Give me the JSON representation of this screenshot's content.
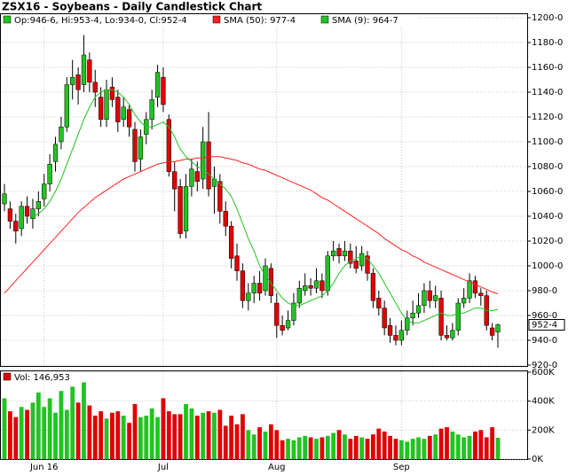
{
  "chart_data": {
    "type": "candlestick",
    "title": "ZSX16 - Soybeans - Daily Candlestick Chart",
    "ohlc_label": "Op:946-6, Hi:953-4, Lo:934-0, Cl:952-4",
    "close_label": "952-4",
    "up_color": "#22c322",
    "down_color": "#e00000",
    "categories": [
      null,
      null,
      null,
      null,
      null,
      null,
      null,
      "Jun 16",
      null,
      null,
      null,
      null,
      null,
      null,
      null,
      null,
      null,
      null,
      null,
      null,
      null,
      null,
      null,
      null,
      null,
      null,
      null,
      null,
      "Jul",
      null,
      null,
      null,
      null,
      null,
      null,
      null,
      null,
      null,
      null,
      null,
      null,
      null,
      null,
      null,
      null,
      null,
      null,
      null,
      "Aug",
      null,
      null,
      null,
      null,
      null,
      null,
      null,
      null,
      null,
      null,
      null,
      null,
      null,
      null,
      null,
      null,
      null,
      null,
      null,
      null,
      null,
      "Sep",
      null,
      null,
      null,
      null,
      null,
      null,
      null,
      null,
      null,
      null,
      null,
      null,
      null,
      null,
      null,
      null,
      null
    ],
    "open": [
      1050,
      1046,
      1036,
      1030,
      1048,
      1038,
      1046,
      1054,
      1066,
      1084,
      1100,
      1112,
      1146,
      1154,
      1146,
      1166,
      1148,
      1136,
      1118,
      1144,
      1136,
      1118,
      1126,
      1110,
      1086,
      1106,
      1118,
      1136,
      1152,
      1118,
      1076,
      1064,
      1028,
      1064,
      1076,
      1070,
      1100,
      1064,
      1068,
      1044,
      1032,
      1008,
      996,
      972,
      978,
      986,
      980,
      998,
      970,
      952,
      950,
      956,
      970,
      980,
      984,
      982,
      988,
      980,
      1008,
      1014,
      1008,
      1012,
      1004,
      1000,
      1008,
      994,
      974,
      966,
      952,
      944,
      940,
      948,
      958,
      962,
      968,
      980,
      972,
      974,
      944,
      942,
      948,
      970,
      974,
      988,
      978,
      976,
      950,
      946.75
    ],
    "high": [
      1066,
      1052,
      1042,
      1052,
      1056,
      1054,
      1060,
      1074,
      1090,
      1104,
      1120,
      1152,
      1166,
      1160,
      1186,
      1172,
      1158,
      1144,
      1150,
      1152,
      1142,
      1136,
      1130,
      1116,
      1110,
      1124,
      1142,
      1162,
      1160,
      1122,
      1084,
      1070,
      1074,
      1086,
      1084,
      1112,
      1124,
      1080,
      1074,
      1052,
      1036,
      1018,
      1002,
      986,
      992,
      996,
      1006,
      1002,
      978,
      960,
      964,
      978,
      988,
      994,
      990,
      998,
      994,
      1012,
      1020,
      1018,
      1020,
      1018,
      1016,
      1016,
      1012,
      998,
      980,
      972,
      958,
      952,
      956,
      964,
      972,
      978,
      986,
      988,
      984,
      980,
      952,
      954,
      974,
      982,
      994,
      992,
      982,
      980,
      954,
      953.5
    ],
    "low": [
      1044,
      1030,
      1018,
      1024,
      1034,
      1030,
      1040,
      1048,
      1060,
      1076,
      1094,
      1108,
      1134,
      1130,
      1140,
      1140,
      1128,
      1112,
      1112,
      1128,
      1108,
      1112,
      1104,
      1076,
      1076,
      1098,
      1110,
      1128,
      1124,
      1072,
      1044,
      1022,
      1022,
      1056,
      1060,
      1062,
      1056,
      1042,
      1034,
      1024,
      998,
      988,
      966,
      964,
      970,
      972,
      976,
      970,
      942,
      944,
      948,
      952,
      966,
      976,
      976,
      978,
      974,
      976,
      1004,
      1002,
      1004,
      998,
      994,
      996,
      988,
      966,
      960,
      944,
      938,
      936,
      936,
      944,
      952,
      958,
      962,
      966,
      966,
      940,
      940,
      940,
      944,
      966,
      970,
      974,
      968,
      948,
      940,
      934
    ],
    "close": [
      1058,
      1036,
      1028,
      1048,
      1040,
      1046,
      1052,
      1066,
      1082,
      1098,
      1112,
      1146,
      1152,
      1142,
      1170,
      1148,
      1140,
      1118,
      1142,
      1134,
      1116,
      1128,
      1112,
      1084,
      1104,
      1118,
      1134,
      1156,
      1130,
      1076,
      1062,
      1026,
      1064,
      1078,
      1068,
      1100,
      1062,
      1070,
      1044,
      1032,
      1006,
      996,
      972,
      978,
      986,
      978,
      1000,
      976,
      952,
      948,
      956,
      970,
      982,
      984,
      982,
      988,
      980,
      1008,
      1012,
      1008,
      1012,
      1002,
      998,
      1010,
      994,
      972,
      966,
      950,
      944,
      940,
      948,
      958,
      962,
      968,
      980,
      972,
      976,
      944,
      942,
      948,
      970,
      974,
      988,
      978,
      976,
      952,
      944,
      952.5
    ],
    "series": [
      {
        "name": "SMA (50): 977-4",
        "color": "#ff2020",
        "values": [
          978,
          983,
          988,
          993,
          998,
          1003,
          1008,
          1013,
          1018,
          1023,
          1028,
          1033,
          1038,
          1043,
          1047,
          1051,
          1055,
          1058,
          1061,
          1064,
          1067,
          1070,
          1072,
          1074,
          1076,
          1078,
          1080,
          1082,
          1083,
          1084,
          1084,
          1085,
          1086,
          1086,
          1087,
          1087,
          1088,
          1088,
          1088,
          1087,
          1086,
          1085,
          1083,
          1082,
          1080,
          1078,
          1077,
          1075,
          1073,
          1071,
          1069,
          1067,
          1065,
          1063,
          1061,
          1058,
          1055,
          1053,
          1050,
          1047,
          1044,
          1041,
          1038,
          1035,
          1032,
          1029,
          1026,
          1022,
          1019,
          1016,
          1013,
          1011,
          1008,
          1006,
          1003,
          1001,
          999,
          997,
          995,
          993,
          991,
          989,
          987,
          985,
          983,
          981,
          979,
          977.5
        ]
      },
      {
        "name": "SMA (9): 964-7",
        "color": "#22c322",
        "values": [
          null,
          null,
          null,
          null,
          null,
          1040,
          1042,
          1046,
          1052,
          1060,
          1070,
          1082,
          1094,
          1106,
          1118,
          1128,
          1136,
          1140,
          1142,
          1142,
          1140,
          1136,
          1130,
          1122,
          1116,
          1112,
          1112,
          1114,
          1116,
          1112,
          1104,
          1094,
          1088,
          1084,
          1080,
          1078,
          1074,
          1070,
          1066,
          1062,
          1056,
          1046,
          1034,
          1022,
          1012,
          1000,
          992,
          986,
          980,
          974,
          970,
          968,
          968,
          970,
          972,
          974,
          976,
          980,
          986,
          994,
          1000,
          1004,
          1006,
          1008,
          1006,
          1000,
          994,
          986,
          978,
          970,
          962,
          956,
          954,
          954,
          956,
          958,
          960,
          962,
          960,
          960,
          962,
          962,
          964,
          966,
          966,
          964,
          964,
          964.875
        ]
      }
    ],
    "ylim": [
      920,
      1200
    ],
    "yticks": [
      {
        "value": 920,
        "label": "920-0"
      },
      {
        "value": 940,
        "label": "940-0"
      },
      {
        "value": 960,
        "label": "960-0"
      },
      {
        "value": 980,
        "label": "980-0"
      },
      {
        "value": 1000,
        "label": "1000-0"
      },
      {
        "value": 1020,
        "label": "1020-0"
      },
      {
        "value": 1040,
        "label": "1040-0"
      },
      {
        "value": 1060,
        "label": "1060-0"
      },
      {
        "value": 1080,
        "label": "1080-0"
      },
      {
        "value": 1100,
        "label": "1100-0"
      },
      {
        "value": 1120,
        "label": "1120-0"
      },
      {
        "value": 1140,
        "label": "1140-0"
      },
      {
        "value": 1160,
        "label": "1160-0"
      },
      {
        "value": 1180,
        "label": "1180-0"
      },
      {
        "value": 1200,
        "label": "1200-0"
      }
    ],
    "grid": true,
    "volume": {
      "name": "Vol: 146,953",
      "values": [
        420000,
        330000,
        290000,
        360000,
        340000,
        390000,
        460000,
        360000,
        420000,
        320000,
        470000,
        340000,
        500000,
        390000,
        530000,
        370000,
        300000,
        330000,
        280000,
        320000,
        330000,
        300000,
        250000,
        380000,
        290000,
        300000,
        350000,
        290000,
        420000,
        330000,
        310000,
        310000,
        380000,
        350000,
        300000,
        320000,
        330000,
        320000,
        340000,
        230000,
        300000,
        240000,
        310000,
        200000,
        170000,
        220000,
        190000,
        240000,
        200000,
        130000,
        140000,
        130000,
        150000,
        160000,
        150000,
        140000,
        150000,
        160000,
        180000,
        200000,
        170000,
        140000,
        160000,
        150000,
        140000,
        170000,
        210000,
        190000,
        160000,
        140000,
        130000,
        120000,
        140000,
        150000,
        140000,
        160000,
        170000,
        210000,
        220000,
        190000,
        170000,
        150000,
        160000,
        190000,
        200000,
        150000,
        220000,
        146953
      ],
      "ylim": [
        0,
        600000
      ],
      "yticks": [
        {
          "value": 0,
          "label": "0K"
        },
        {
          "value": 200000,
          "label": "200K"
        },
        {
          "value": 400000,
          "label": "400K"
        },
        {
          "value": 600000,
          "label": "600K"
        }
      ]
    }
  }
}
